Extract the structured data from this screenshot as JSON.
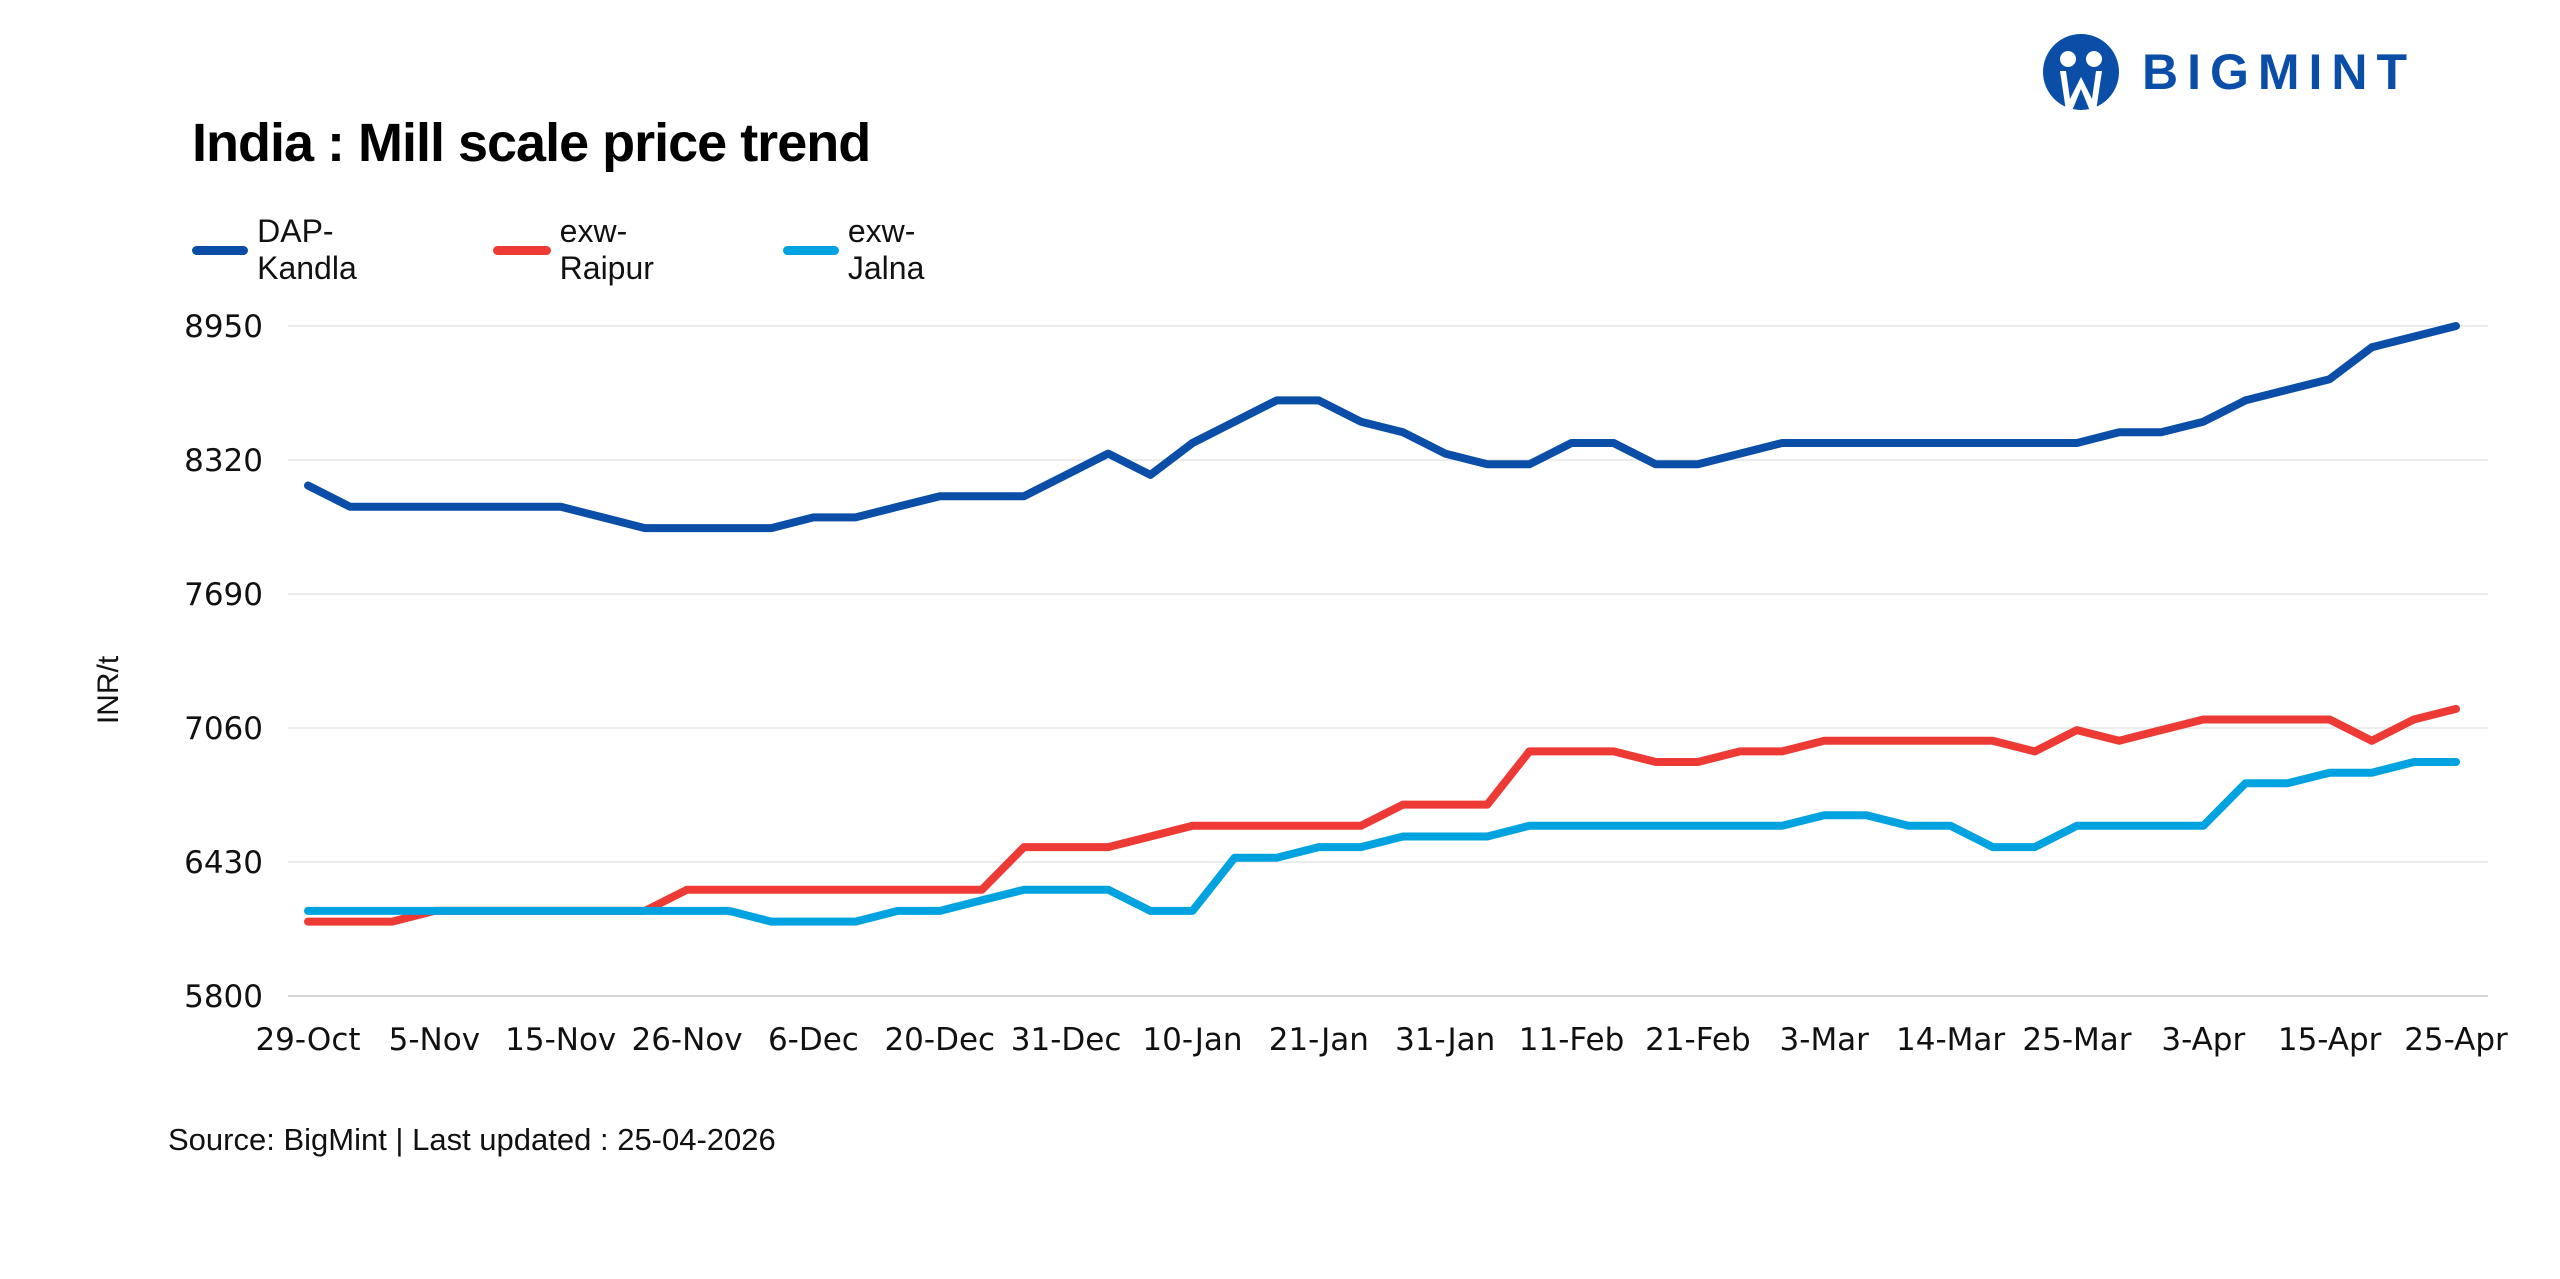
{
  "logo": {
    "text": "BIGMINT",
    "color": "#0a4ea8"
  },
  "footer": {
    "source": "Source: BigMint | Last updated : 25-04-2026"
  },
  "chart_data": {
    "type": "line",
    "title": "India : Mill scale price trend",
    "ylabel": "INR/t",
    "xlabel": "",
    "ylim": [
      5800,
      8950
    ],
    "yticks": [
      "8950",
      "8320",
      "7690",
      "7060",
      "6430",
      "5800"
    ],
    "grid": true,
    "legend_position": "top-left",
    "x_tick_labels": [
      "29-Oct",
      "5-Nov",
      "15-Nov",
      "26-Nov",
      "6-Dec",
      "20-Dec",
      "31-Dec",
      "10-Jan",
      "21-Jan",
      "31-Jan",
      "11-Feb",
      "21-Feb",
      "3-Mar",
      "14-Mar",
      "25-Mar",
      "3-Apr",
      "15-Apr",
      "25-Apr"
    ],
    "x_tick_every": 3,
    "series": [
      {
        "name": "DAP-Kandla",
        "color": "#0a4ea8",
        "values": [
          8200,
          8100,
          8100,
          8100,
          8100,
          8100,
          8100,
          8050,
          8000,
          8000,
          8000,
          8000,
          8050,
          8050,
          8100,
          8150,
          8150,
          8150,
          8250,
          8350,
          8250,
          8400,
          8500,
          8600,
          8600,
          8500,
          8450,
          8350,
          8300,
          8300,
          8400,
          8400,
          8300,
          8300,
          8350,
          8400,
          8400,
          8400,
          8400,
          8400,
          8400,
          8400,
          8400,
          8450,
          8450,
          8500,
          8600,
          8650,
          8700,
          8850,
          8900,
          8950
        ]
      },
      {
        "name": "exw-Raipur",
        "color": "#ee3a35",
        "values": [
          6150,
          6150,
          6150,
          6200,
          6200,
          6200,
          6200,
          6200,
          6200,
          6300,
          6300,
          6300,
          6300,
          6300,
          6300,
          6300,
          6300,
          6500,
          6500,
          6500,
          6550,
          6600,
          6600,
          6600,
          6600,
          6600,
          6700,
          6700,
          6700,
          6950,
          6950,
          6950,
          6900,
          6900,
          6950,
          6950,
          7000,
          7000,
          7000,
          7000,
          7000,
          6950,
          7050,
          7000,
          7050,
          7100,
          7100,
          7100,
          7100,
          7000,
          7100,
          7150
        ]
      },
      {
        "name": "exw-Jalna",
        "color": "#00a3e0",
        "values": [
          6200,
          6200,
          6200,
          6200,
          6200,
          6200,
          6200,
          6200,
          6200,
          6200,
          6200,
          6150,
          6150,
          6150,
          6200,
          6200,
          6250,
          6300,
          6300,
          6300,
          6200,
          6200,
          6450,
          6450,
          6500,
          6500,
          6550,
          6550,
          6550,
          6600,
          6600,
          6600,
          6600,
          6600,
          6600,
          6600,
          6650,
          6650,
          6600,
          6600,
          6500,
          6500,
          6600,
          6600,
          6600,
          6600,
          6800,
          6800,
          6850,
          6850,
          6900,
          6900
        ]
      }
    ]
  }
}
